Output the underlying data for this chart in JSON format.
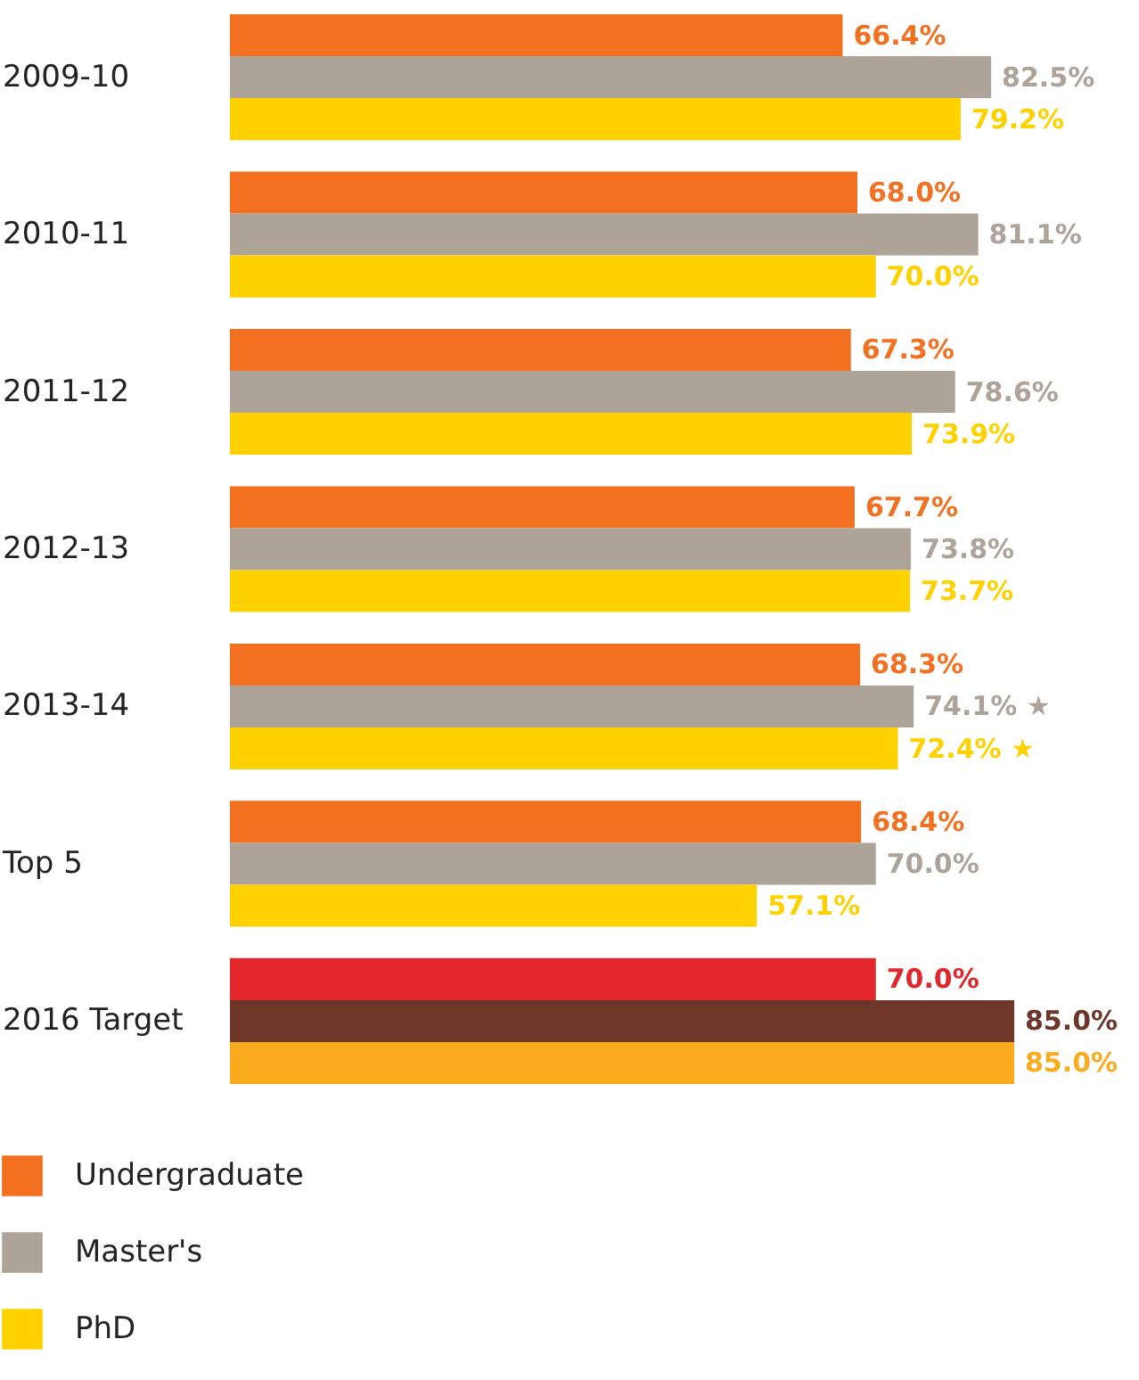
{
  "chart_data": {
    "type": "bar",
    "orientation": "horizontal",
    "categories": [
      "2009-10",
      "2010-11",
      "2011-12",
      "2012-13",
      "2013-14",
      "Top 5",
      "2016 Target"
    ],
    "legend": "bottom left",
    "series": [
      {
        "name": "Undergraduate",
        "color": "#f37021",
        "colors": [
          "#f37021",
          "#f37021",
          "#f37021",
          "#f37021",
          "#f37021",
          "#f37021",
          "#e2262a"
        ],
        "values": [
          66.4,
          68.0,
          67.3,
          67.7,
          68.3,
          68.4,
          70.0
        ],
        "value_labels": [
          "66.4%",
          "68.0%",
          "67.3%",
          "67.7%",
          "68.3%",
          "68.4%",
          "70.0%"
        ]
      },
      {
        "name": "Master's",
        "color": "#ada398",
        "colors": [
          "#ada398",
          "#ada398",
          "#ada398",
          "#ada398",
          "#ada398",
          "#ada398",
          "#6e3529"
        ],
        "values": [
          82.5,
          81.1,
          78.6,
          73.8,
          74.1,
          70.0,
          85.0
        ],
        "value_labels": [
          "82.5%",
          "81.1%",
          "78.6%",
          "73.8%",
          "74.1% ★",
          "70.0%",
          "85.0%"
        ]
      },
      {
        "name": "PhD",
        "color": "#ffd100",
        "colors": [
          "#ffd100",
          "#ffd100",
          "#ffd100",
          "#ffd100",
          "#ffd100",
          "#ffd100",
          "#fbab1e"
        ],
        "values": [
          79.2,
          70.0,
          73.9,
          73.7,
          72.4,
          57.1,
          85.0
        ],
        "value_labels": [
          "79.2%",
          "70.0%",
          "73.9%",
          "73.7%",
          "72.4% ★",
          "57.1%",
          "85.0%"
        ]
      }
    ]
  }
}
